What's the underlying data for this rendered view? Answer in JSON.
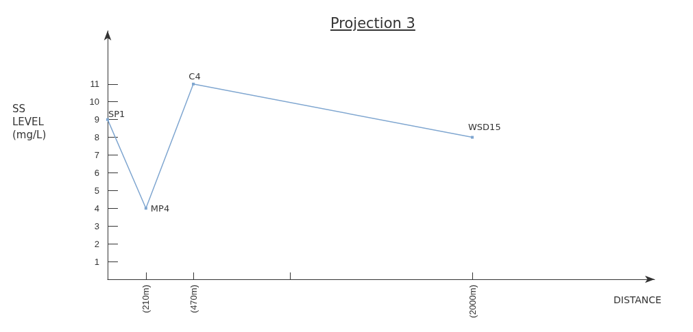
{
  "chart_data": {
    "type": "line",
    "title": "Projection 3",
    "xlabel": "DISTANCE",
    "ylabel": "SS\nLEVEL\n(mg/L)",
    "x": [
      0,
      210,
      470,
      2000
    ],
    "series": [
      {
        "color": "#7fa6d0",
        "values": [
          9,
          4,
          11,
          8
        ]
      }
    ],
    "xlim": [
      0,
      3000
    ],
    "xticks": [
      {
        "value": 210,
        "label": "(210m)"
      },
      {
        "value": 470,
        "label": "(470m)"
      },
      {
        "value": 1000,
        "label": null
      },
      {
        "value": 2000,
        "label": "(2000m)"
      }
    ],
    "ylim": [
      0,
      14
    ],
    "yticks": [
      1,
      2,
      3,
      4,
      5,
      6,
      7,
      8,
      9,
      10,
      11
    ],
    "annotations": [
      {
        "text": "SP1",
        "x": 0,
        "y": 9
      },
      {
        "text": "MP4",
        "x": 210,
        "y": 4
      },
      {
        "text": "C4",
        "x": 470,
        "y": 11
      },
      {
        "text": "WSD15",
        "x": 2000,
        "y": 8
      }
    ],
    "marker": "square",
    "line_style": "solid"
  }
}
